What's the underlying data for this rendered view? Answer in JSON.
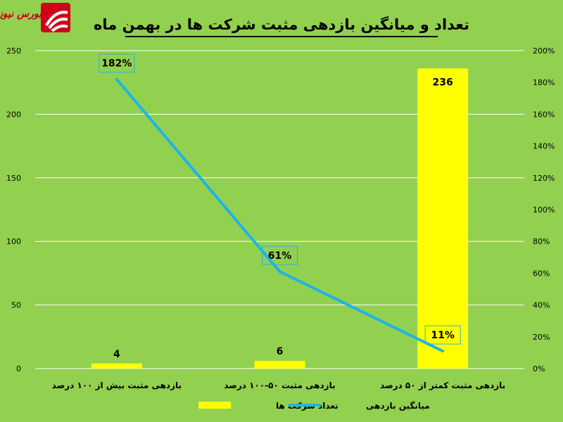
{
  "brand": {
    "logo_text": "بورس نیوز",
    "logo_color": "#d0021b"
  },
  "colors": {
    "background": "#92d050",
    "bar": "#ffff00",
    "line": "#1eb4e6"
  },
  "chart_data": {
    "type": "bar",
    "title": "تعداد و میانگین بازدهی مثبت شرکت ها در بهمن ماه",
    "categories": [
      "بازدهی مثبت بیش از ۱۰۰ درصد",
      "بازدهی مثبت ۵۰-۱۰۰ درصد",
      "بازدهی مثبت کمتر از ۵۰ درصد"
    ],
    "series": [
      {
        "name": "تعداد شرکت ها",
        "type": "bar",
        "axis": "left",
        "values": [
          4,
          6,
          236
        ],
        "labels": [
          "4",
          "6",
          "236"
        ]
      },
      {
        "name": "میانگین بازدهی",
        "type": "line",
        "axis": "right",
        "values": [
          182,
          61,
          11
        ],
        "labels": [
          "182%",
          "61%",
          "11%"
        ]
      }
    ],
    "y_left": {
      "min": 0,
      "max": 250,
      "ticks": [
        "0",
        "50",
        "100",
        "150",
        "200",
        "250"
      ]
    },
    "y_right": {
      "min": 0,
      "max": 200,
      "ticks": [
        "0%",
        "20%",
        "40%",
        "60%",
        "80%",
        "100%",
        "120%",
        "140%",
        "160%",
        "180%",
        "200%"
      ]
    },
    "grid": true,
    "legend": "bottom"
  }
}
